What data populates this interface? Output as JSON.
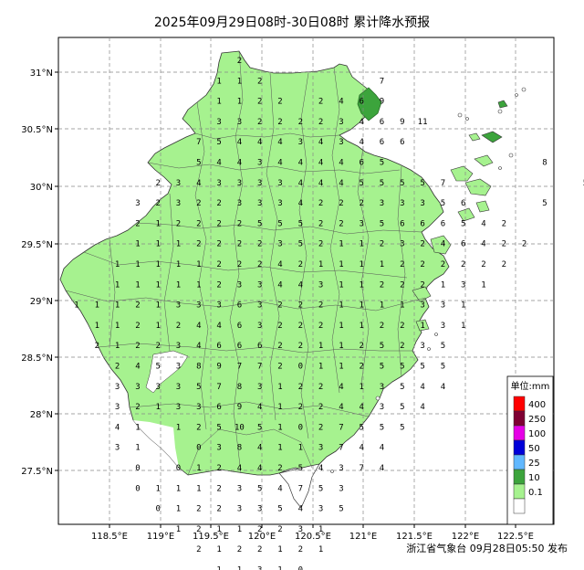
{
  "title": "2025年09月29日08时-30日08时 累计降水预报",
  "footer": "浙江省气象台 09月28日05:50 发布",
  "x_ticks": [
    "118.5°E",
    "119°E",
    "119.5°E",
    "120°E",
    "120.5°E",
    "121°E",
    "121.5°E",
    "122°E",
    "122.5°E"
  ],
  "y_ticks": [
    "31°N",
    "30.5°N",
    "30°N",
    "29.5°N",
    "29°N",
    "28.5°N",
    "28°N",
    "27.5°N"
  ],
  "legend": {
    "title": "单位:mm",
    "items": [
      {
        "label": "400",
        "color": "#ff0000"
      },
      {
        "label": "250",
        "color": "#7f0033"
      },
      {
        "label": "100",
        "color": "#e600e6"
      },
      {
        "label": "50",
        "color": "#0000d9"
      },
      {
        "label": "25",
        "color": "#61b8ff"
      },
      {
        "label": "10",
        "color": "#3ca43c"
      },
      {
        "label": "0.1",
        "color": "#a6f28f"
      }
    ],
    "bottom_color": "#ffffff"
  },
  "colors": {
    "light_rain": "#a6f28f",
    "moderate_rain": "#3ca43c"
  },
  "grid_values": [
    [
      null,
      null,
      null,
      null,
      null,
      null,
      null,
      null,
      null,
      null,
      null,
      "2",
      null,
      null,
      null,
      null,
      null,
      null,
      null,
      null,
      null,
      null,
      null,
      null,
      null,
      null,
      null,
      null,
      null,
      null,
      null,
      null,
      null,
      null,
      null,
      null,
      null,
      null,
      null,
      null
    ],
    [
      null,
      null,
      null,
      null,
      null,
      null,
      null,
      null,
      null,
      null,
      "1",
      "1",
      "2",
      null,
      null,
      null,
      null,
      null,
      null,
      null,
      null,
      "7",
      null,
      null,
      null,
      null,
      null,
      null,
      null,
      null,
      null,
      null,
      null,
      null,
      null,
      null,
      null,
      null,
      null,
      null
    ],
    [
      null,
      null,
      null,
      null,
      null,
      null,
      null,
      null,
      null,
      "1",
      "1",
      "2",
      "2",
      null,
      null,
      "2",
      "4",
      "6",
      "9",
      null,
      null,
      null,
      null,
      null,
      null,
      null,
      null,
      null,
      null,
      null,
      null,
      null,
      null,
      null,
      null,
      null,
      null,
      null,
      null,
      null
    ],
    [
      null,
      null,
      null,
      null,
      null,
      null,
      null,
      null,
      null,
      "3",
      "3",
      "2",
      "2",
      "2",
      "2",
      "3",
      "4",
      "6",
      "9",
      "11",
      null,
      null,
      null,
      null,
      null,
      null,
      null,
      null,
      null,
      null,
      null,
      null,
      null,
      null,
      null,
      null,
      null,
      null,
      null,
      null
    ],
    [
      null,
      null,
      null,
      null,
      null,
      null,
      null,
      "7",
      "5",
      "4",
      "4",
      "4",
      "3",
      "4",
      "3",
      "4",
      "6",
      null,
      null,
      null,
      null,
      null,
      null,
      null,
      null,
      null,
      null,
      null,
      null,
      null,
      null,
      null,
      null,
      null,
      null,
      null,
      null,
      null,
      null,
      null
    ],
    [
      null,
      null,
      null,
      null,
      null,
      null,
      null,
      "5",
      "4",
      "4",
      "3",
      "4",
      "4",
      "4",
      "4",
      "6",
      "5",
      null,
      null,
      null,
      null,
      null,
      null,
      null,
      null,
      null,
      null,
      null,
      null,
      null,
      null,
      null,
      null,
      null,
      null,
      null,
      null,
      null,
      null,
      null
    ],
    [
      null,
      null,
      null,
      null,
      "2",
      "3",
      "4",
      "3",
      "3",
      "3",
      "3",
      "4",
      "4",
      "4",
      "5",
      "5",
      "5",
      "5",
      "7",
      null,
      null,
      null,
      null,
      null,
      null,
      null,
      null,
      null,
      null,
      null,
      null,
      null,
      null,
      null,
      null,
      null,
      null,
      null,
      null,
      null
    ],
    [
      null,
      null,
      null,
      "3",
      "2",
      "3",
      "2",
      "2",
      "3",
      "3",
      "3",
      "4",
      "2",
      "2",
      "2",
      "3",
      "3",
      "3",
      "5",
      "6",
      null,
      null,
      null,
      null,
      null,
      null,
      null,
      null,
      null,
      null,
      null,
      null,
      null,
      null,
      null,
      null,
      null,
      null,
      null,
      null
    ],
    [
      null,
      null,
      null,
      "2",
      "1",
      "2",
      "2",
      "2",
      "2",
      "5",
      "5",
      "5",
      "2",
      "2",
      "3",
      "5",
      "6",
      "6",
      "6",
      "5",
      null,
      null,
      null,
      null,
      null,
      null,
      null,
      null,
      null,
      null,
      null,
      null,
      null,
      null,
      null,
      null,
      null,
      null,
      null,
      null
    ],
    [
      null,
      null,
      "1",
      "1",
      "1",
      "2",
      "2",
      "2",
      "2",
      "3",
      "5",
      "2",
      "1",
      "1",
      "2",
      "3",
      "2",
      "4",
      "6",
      "4",
      null,
      null,
      null,
      null,
      null,
      null,
      null,
      null,
      null,
      null,
      null,
      null,
      null,
      null,
      null,
      null,
      null,
      null,
      null,
      null
    ],
    [
      null,
      "1",
      "1",
      "1",
      "1",
      "1",
      "2",
      "2",
      "2",
      "4",
      "2",
      "1",
      "1",
      "1",
      "1",
      "2",
      "2",
      "2",
      "2",
      "2",
      null,
      null,
      null,
      null,
      null,
      null,
      null,
      null,
      null,
      null,
      null,
      null,
      null,
      null,
      null,
      null,
      null,
      null,
      null,
      null
    ],
    [
      null,
      "1",
      "1",
      "1",
      "1",
      "1",
      "2",
      "3",
      "3",
      "4",
      "4",
      "3",
      "1",
      "1",
      "2",
      "2",
      "2",
      "1",
      "3",
      "1",
      null,
      null,
      null,
      null,
      null,
      null,
      null,
      null,
      null,
      null,
      null,
      null,
      null,
      null,
      null,
      null,
      null,
      null,
      null,
      null
    ],
    [
      "1",
      "1",
      "1",
      "2",
      "1",
      "3",
      "3",
      "3",
      "6",
      "3",
      "2",
      "2",
      "2",
      "1",
      "1",
      "1",
      "1",
      "3",
      "3",
      "1",
      null,
      null,
      null,
      null,
      null,
      null,
      null,
      null,
      null,
      null,
      null,
      null,
      null,
      null,
      null,
      null,
      null,
      null,
      null,
      null
    ]
  ],
  "map_rows": [
    {
      "row": 0,
      "cells": [
        [
          9,
          "2"
        ]
      ]
    },
    {
      "row": 1,
      "cells": [
        [
          7,
          "1"
        ],
        [
          8,
          "1"
        ],
        [
          9,
          "2"
        ],
        [
          15,
          "7"
        ]
      ]
    },
    {
      "row": 2,
      "cells": [
        [
          7,
          "1"
        ],
        [
          8,
          "1"
        ],
        [
          9,
          "2"
        ],
        [
          10,
          "2"
        ],
        [
          12,
          "2"
        ],
        [
          13,
          "4"
        ],
        [
          14,
          "6"
        ],
        [
          15,
          "9"
        ]
      ]
    },
    {
      "row": 3,
      "cells": [
        [
          7,
          "3"
        ],
        [
          8,
          "3"
        ],
        [
          9,
          "2"
        ],
        [
          10,
          "2"
        ],
        [
          11,
          "2"
        ],
        [
          12,
          "2"
        ],
        [
          13,
          "3"
        ],
        [
          14,
          "4"
        ],
        [
          15,
          "6"
        ],
        [
          16,
          "9"
        ],
        [
          17,
          "11"
        ]
      ]
    },
    {
      "row": 4,
      "cells": [
        [
          5,
          "7"
        ],
        [
          6,
          "5"
        ],
        [
          7,
          "4"
        ],
        [
          8,
          "4"
        ],
        [
          9,
          "4"
        ],
        [
          10,
          "3"
        ],
        [
          11,
          "4"
        ],
        [
          12,
          "3"
        ],
        [
          13,
          "4"
        ],
        [
          14,
          "6"
        ],
        [
          15,
          "6"
        ]
      ]
    },
    {
      "row": 5,
      "cells": [
        [
          5,
          "5"
        ],
        [
          6,
          "4"
        ],
        [
          7,
          "4"
        ],
        [
          8,
          "3"
        ],
        [
          9,
          "4"
        ],
        [
          10,
          "4"
        ],
        [
          11,
          "4"
        ],
        [
          12,
          "4"
        ],
        [
          13,
          "6"
        ],
        [
          14,
          "5"
        ],
        [
          21,
          "8"
        ]
      ]
    },
    {
      "row": 6,
      "cells": [
        [
          2,
          "2"
        ],
        [
          3,
          "3"
        ],
        [
          4,
          "4"
        ],
        [
          5,
          "3"
        ],
        [
          6,
          "3"
        ],
        [
          7,
          "3"
        ],
        [
          8,
          "3"
        ],
        [
          9,
          "4"
        ],
        [
          10,
          "4"
        ],
        [
          11,
          "4"
        ],
        [
          12,
          "5"
        ],
        [
          13,
          "5"
        ],
        [
          14,
          "5"
        ],
        [
          15,
          "5"
        ],
        [
          16,
          "7"
        ],
        [
          21,
          "5"
        ]
      ]
    },
    {
      "row": 7,
      "cells": [
        [
          1,
          "3"
        ],
        [
          2,
          "2"
        ],
        [
          3,
          "3"
        ],
        [
          4,
          "2"
        ],
        [
          5,
          "2"
        ],
        [
          6,
          "3"
        ],
        [
          7,
          "3"
        ],
        [
          8,
          "3"
        ],
        [
          9,
          "4"
        ],
        [
          10,
          "2"
        ],
        [
          11,
          "2"
        ],
        [
          12,
          "2"
        ],
        [
          13,
          "3"
        ],
        [
          14,
          "3"
        ],
        [
          15,
          "3"
        ],
        [
          16,
          "5"
        ],
        [
          17,
          "6"
        ],
        [
          20,
          "5"
        ]
      ]
    },
    {
      "row": 8,
      "cells": [
        [
          1,
          "2"
        ],
        [
          2,
          "1"
        ],
        [
          3,
          "2"
        ],
        [
          4,
          "2"
        ],
        [
          5,
          "2"
        ],
        [
          6,
          "2"
        ],
        [
          7,
          "5"
        ],
        [
          8,
          "5"
        ],
        [
          9,
          "5"
        ],
        [
          10,
          "2"
        ],
        [
          11,
          "2"
        ],
        [
          12,
          "3"
        ],
        [
          13,
          "5"
        ],
        [
          14,
          "6"
        ],
        [
          15,
          "6"
        ],
        [
          16,
          "6"
        ],
        [
          17,
          "5"
        ],
        [
          18,
          "4"
        ],
        [
          19,
          "2"
        ]
      ]
    },
    {
      "row": 9,
      "cells": [
        [
          0,
          "1"
        ],
        [
          1,
          "1"
        ],
        [
          2,
          "1"
        ],
        [
          3,
          "2"
        ],
        [
          4,
          "2"
        ],
        [
          5,
          "2"
        ],
        [
          6,
          "2"
        ],
        [
          7,
          "3"
        ],
        [
          8,
          "5"
        ],
        [
          9,
          "2"
        ],
        [
          10,
          "1"
        ],
        [
          11,
          "1"
        ],
        [
          12,
          "2"
        ],
        [
          13,
          "3"
        ],
        [
          14,
          "2"
        ],
        [
          15,
          "4"
        ],
        [
          16,
          "6"
        ],
        [
          17,
          "4"
        ],
        [
          18,
          "2"
        ],
        [
          19,
          "2"
        ]
      ]
    }
  ]
}
